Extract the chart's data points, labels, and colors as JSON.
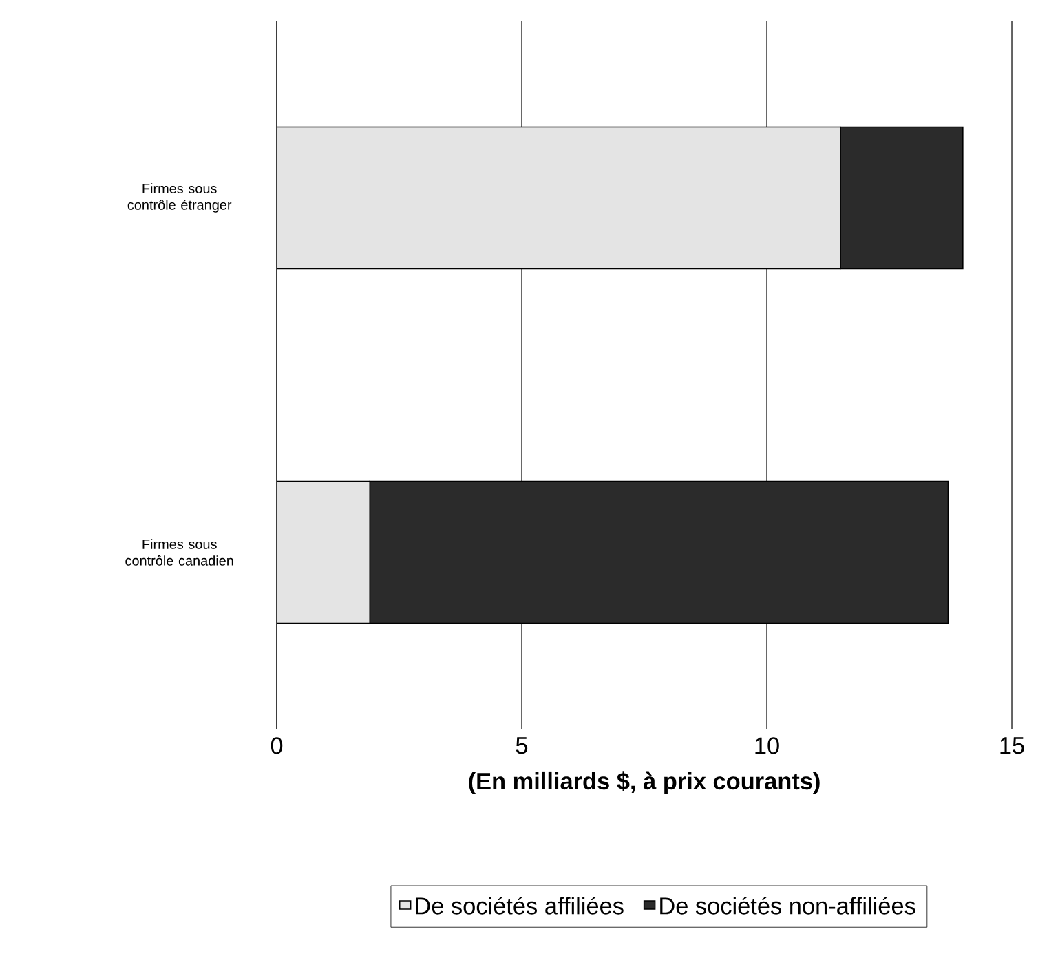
{
  "chart_data": {
    "type": "bar",
    "orientation": "horizontal",
    "stacked": true,
    "categories": [
      "Firmes sous contrôle étranger",
      "Firmes sous contrôle canadien"
    ],
    "series": [
      {
        "name": "De sociétés affiliées",
        "color": "#e4e4e4",
        "values": [
          11.5,
          1.9
        ]
      },
      {
        "name": "De sociétés non-affiliées",
        "color": "#2b2b2b",
        "values": [
          2.5,
          11.8
        ]
      }
    ],
    "xlabel": "(En milliards $, à prix courants)",
    "xlim": [
      0,
      15
    ],
    "xticks": [
      0,
      5,
      10,
      15
    ],
    "grid": "x",
    "legend": "bottom"
  }
}
